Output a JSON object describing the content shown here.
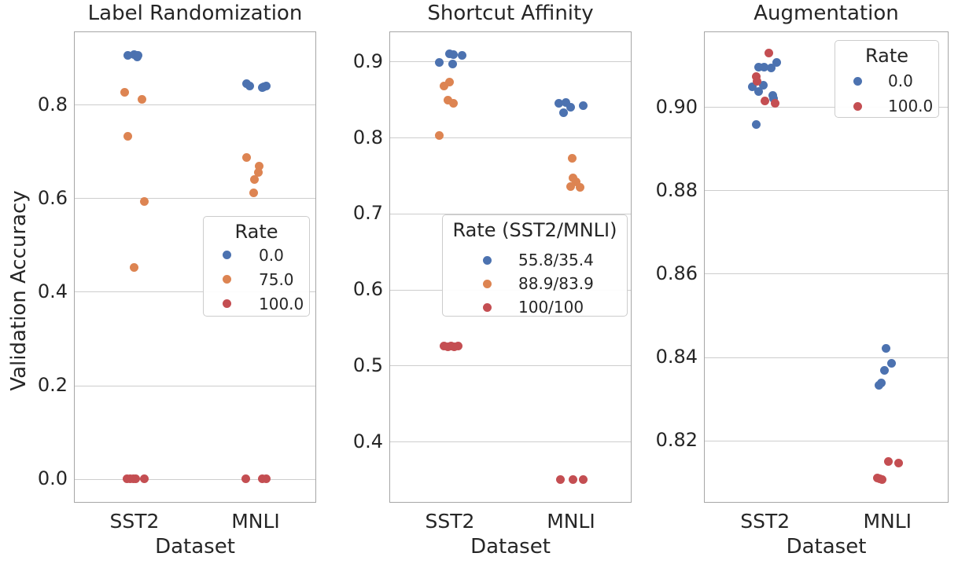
{
  "figure": {
    "ylabel": "Validation Accuracy",
    "palette": {
      "blue": "#4C72B0",
      "orange": "#DD8452",
      "red": "#C44E52"
    },
    "grid_color": "#cdcdcd",
    "spine_color": "#a6a6a6",
    "text_color": "#262626",
    "background": "#ffffff"
  },
  "chart_data": [
    {
      "type": "scatter",
      "variant": "strip",
      "title": "Label Randomization",
      "xlabel": "Dataset",
      "categories": [
        "SST2",
        "MNLI"
      ],
      "ylim": [
        -0.052,
        0.956
      ],
      "yticks": [
        0.0,
        0.2,
        0.4,
        0.6,
        0.8
      ],
      "ytick_labels": [
        "0.0",
        "0.2",
        "0.4",
        "0.6",
        "0.8"
      ],
      "grid": true,
      "legend": {
        "title": "Rate",
        "position": "lower right",
        "entries": [
          {
            "label": "0.0",
            "color": "#4C72B0"
          },
          {
            "label": "75.0",
            "color": "#DD8452"
          },
          {
            "label": "100.0",
            "color": "#C44E52"
          }
        ]
      },
      "series": [
        {
          "name": "0.0",
          "color": "#4C72B0",
          "points": [
            {
              "cat": "SST2",
              "dx": -9,
              "y": 0.904
            },
            {
              "cat": "SST2",
              "dx": -1,
              "y": 0.907
            },
            {
              "cat": "SST2",
              "dx": 2,
              "y": 0.905
            },
            {
              "cat": "SST2",
              "dx": 4,
              "y": 0.904
            },
            {
              "cat": "SST2",
              "dx": 3,
              "y": 0.901
            },
            {
              "cat": "MNLI",
              "dx": -12,
              "y": 0.844
            },
            {
              "cat": "MNLI",
              "dx": -8,
              "y": 0.84
            },
            {
              "cat": "MNLI",
              "dx": 8,
              "y": 0.836
            },
            {
              "cat": "MNLI",
              "dx": 10,
              "y": 0.838
            },
            {
              "cat": "MNLI",
              "dx": 13,
              "y": 0.839
            }
          ]
        },
        {
          "name": "75.0",
          "color": "#DD8452",
          "points": [
            {
              "cat": "SST2",
              "dx": -13,
              "y": 0.825
            },
            {
              "cat": "SST2",
              "dx": 9,
              "y": 0.81
            },
            {
              "cat": "SST2",
              "dx": -9,
              "y": 0.732
            },
            {
              "cat": "SST2",
              "dx": 12,
              "y": 0.592
            },
            {
              "cat": "SST2",
              "dx": -1,
              "y": 0.452
            },
            {
              "cat": "MNLI",
              "dx": -12,
              "y": 0.687
            },
            {
              "cat": "MNLI",
              "dx": 4,
              "y": 0.668
            },
            {
              "cat": "MNLI",
              "dx": 3,
              "y": 0.654
            },
            {
              "cat": "MNLI",
              "dx": -2,
              "y": 0.64
            },
            {
              "cat": "MNLI",
              "dx": -3,
              "y": 0.611
            }
          ]
        },
        {
          "name": "100.0",
          "color": "#C44E52",
          "points": [
            {
              "cat": "SST2",
              "dx": -10,
              "y": 0.0
            },
            {
              "cat": "SST2",
              "dx": -6,
              "y": 0.0
            },
            {
              "cat": "SST2",
              "dx": -2,
              "y": 0.0
            },
            {
              "cat": "SST2",
              "dx": 1,
              "y": 0.0
            },
            {
              "cat": "SST2",
              "dx": 12,
              "y": 0.0
            },
            {
              "cat": "MNLI",
              "dx": -13,
              "y": 0.0
            },
            {
              "cat": "MNLI",
              "dx": 8,
              "y": 0.0
            },
            {
              "cat": "MNLI",
              "dx": 13,
              "y": 0.0
            }
          ]
        }
      ]
    },
    {
      "type": "scatter",
      "variant": "strip",
      "title": "Shortcut Affinity",
      "xlabel": "Dataset",
      "categories": [
        "SST2",
        "MNLI"
      ],
      "ylim": [
        0.319,
        0.939
      ],
      "yticks": [
        0.4,
        0.5,
        0.6,
        0.7,
        0.8,
        0.9
      ],
      "ytick_labels": [
        "0.4",
        "0.5",
        "0.6",
        "0.7",
        "0.8",
        "0.9"
      ],
      "grid": true,
      "legend": {
        "title": "Rate (SST2/MNLI)",
        "position": "lower center",
        "entries": [
          {
            "label": "55.8/35.4",
            "color": "#4C72B0"
          },
          {
            "label": "88.9/83.9",
            "color": "#DD8452"
          },
          {
            "label": "100/100",
            "color": "#C44E52"
          }
        ]
      },
      "series": [
        {
          "name": "55.8/35.4",
          "color": "#4C72B0",
          "points": [
            {
              "cat": "SST2",
              "dx": -14,
              "y": 0.898
            },
            {
              "cat": "SST2",
              "dx": -1,
              "y": 0.91
            },
            {
              "cat": "SST2",
              "dx": 4,
              "y": 0.909
            },
            {
              "cat": "SST2",
              "dx": 15,
              "y": 0.908
            },
            {
              "cat": "SST2",
              "dx": 3,
              "y": 0.896
            },
            {
              "cat": "MNLI",
              "dx": -16,
              "y": 0.844
            },
            {
              "cat": "MNLI",
              "dx": -7,
              "y": 0.845
            },
            {
              "cat": "MNLI",
              "dx": -10,
              "y": 0.832
            },
            {
              "cat": "MNLI",
              "dx": -1,
              "y": 0.839
            },
            {
              "cat": "MNLI",
              "dx": 15,
              "y": 0.841
            }
          ]
        },
        {
          "name": "88.9/83.9",
          "color": "#DD8452",
          "points": [
            {
              "cat": "SST2",
              "dx": -1,
              "y": 0.872
            },
            {
              "cat": "SST2",
              "dx": -8,
              "y": 0.867
            },
            {
              "cat": "SST2",
              "dx": -3,
              "y": 0.849
            },
            {
              "cat": "SST2",
              "dx": 4,
              "y": 0.844
            },
            {
              "cat": "SST2",
              "dx": -14,
              "y": 0.802
            },
            {
              "cat": "MNLI",
              "dx": 1,
              "y": 0.772
            },
            {
              "cat": "MNLI",
              "dx": 2,
              "y": 0.746
            },
            {
              "cat": "MNLI",
              "dx": 6,
              "y": 0.741
            },
            {
              "cat": "MNLI",
              "dx": -1,
              "y": 0.735
            },
            {
              "cat": "MNLI",
              "dx": 11,
              "y": 0.734
            }
          ]
        },
        {
          "name": "100/100",
          "color": "#C44E52",
          "points": [
            {
              "cat": "SST2",
              "dx": -8,
              "y": 0.525
            },
            {
              "cat": "SST2",
              "dx": -3,
              "y": 0.524
            },
            {
              "cat": "SST2",
              "dx": 1,
              "y": 0.525
            },
            {
              "cat": "SST2",
              "dx": 5,
              "y": 0.524
            },
            {
              "cat": "SST2",
              "dx": 10,
              "y": 0.525
            },
            {
              "cat": "MNLI",
              "dx": -14,
              "y": 0.349
            },
            {
              "cat": "MNLI",
              "dx": 2,
              "y": 0.349
            },
            {
              "cat": "MNLI",
              "dx": 15,
              "y": 0.349
            }
          ]
        }
      ]
    },
    {
      "type": "scatter",
      "variant": "strip",
      "title": "Augmentation",
      "xlabel": "Dataset",
      "categories": [
        "SST2",
        "MNLI"
      ],
      "ylim": [
        0.805,
        0.918
      ],
      "yticks": [
        0.82,
        0.84,
        0.86,
        0.88,
        0.9
      ],
      "ytick_labels": [
        "0.82",
        "0.84",
        "0.86",
        "0.88",
        "0.90"
      ],
      "grid": true,
      "legend": {
        "title": "Rate",
        "position": "upper right",
        "entries": [
          {
            "label": "0.0",
            "color": "#4C72B0"
          },
          {
            "label": "100.0",
            "color": "#C44E52"
          }
        ]
      },
      "series": [
        {
          "name": "0.0",
          "color": "#4C72B0",
          "points": [
            {
              "cat": "SST2",
              "dx": -8,
              "y": 0.9094
            },
            {
              "cat": "SST2",
              "dx": -1,
              "y": 0.9094
            },
            {
              "cat": "SST2",
              "dx": 8,
              "y": 0.9092
            },
            {
              "cat": "SST2",
              "dx": 15,
              "y": 0.9106
            },
            {
              "cat": "SST2",
              "dx": -16,
              "y": 0.9047
            },
            {
              "cat": "SST2",
              "dx": -2,
              "y": 0.9051
            },
            {
              "cat": "SST2",
              "dx": -8,
              "y": 0.9036
            },
            {
              "cat": "SST2",
              "dx": 10,
              "y": 0.9026
            },
            {
              "cat": "SST2",
              "dx": 11,
              "y": 0.9019
            },
            {
              "cat": "SST2",
              "dx": -11,
              "y": 0.8957
            },
            {
              "cat": "MNLI",
              "dx": -2,
              "y": 0.8421
            },
            {
              "cat": "MNLI",
              "dx": 5,
              "y": 0.8385
            },
            {
              "cat": "MNLI",
              "dx": -4,
              "y": 0.8368
            },
            {
              "cat": "MNLI",
              "dx": -8,
              "y": 0.8338
            },
            {
              "cat": "MNLI",
              "dx": -11,
              "y": 0.8332
            }
          ]
        },
        {
          "name": "100.0",
          "color": "#C44E52",
          "points": [
            {
              "cat": "SST2",
              "dx": 5,
              "y": 0.9128
            },
            {
              "cat": "SST2",
              "dx": -11,
              "y": 0.9072
            },
            {
              "cat": "SST2",
              "dx": -10,
              "y": 0.906
            },
            {
              "cat": "SST2",
              "dx": 0,
              "y": 0.9013
            },
            {
              "cat": "SST2",
              "dx": 13,
              "y": 0.9008
            },
            {
              "cat": "MNLI",
              "dx": 1,
              "y": 0.8149
            },
            {
              "cat": "MNLI",
              "dx": 14,
              "y": 0.8145
            },
            {
              "cat": "MNLI",
              "dx": -13,
              "y": 0.8109
            },
            {
              "cat": "MNLI",
              "dx": -10,
              "y": 0.8107
            },
            {
              "cat": "MNLI",
              "dx": -7,
              "y": 0.8105
            }
          ]
        }
      ]
    }
  ]
}
